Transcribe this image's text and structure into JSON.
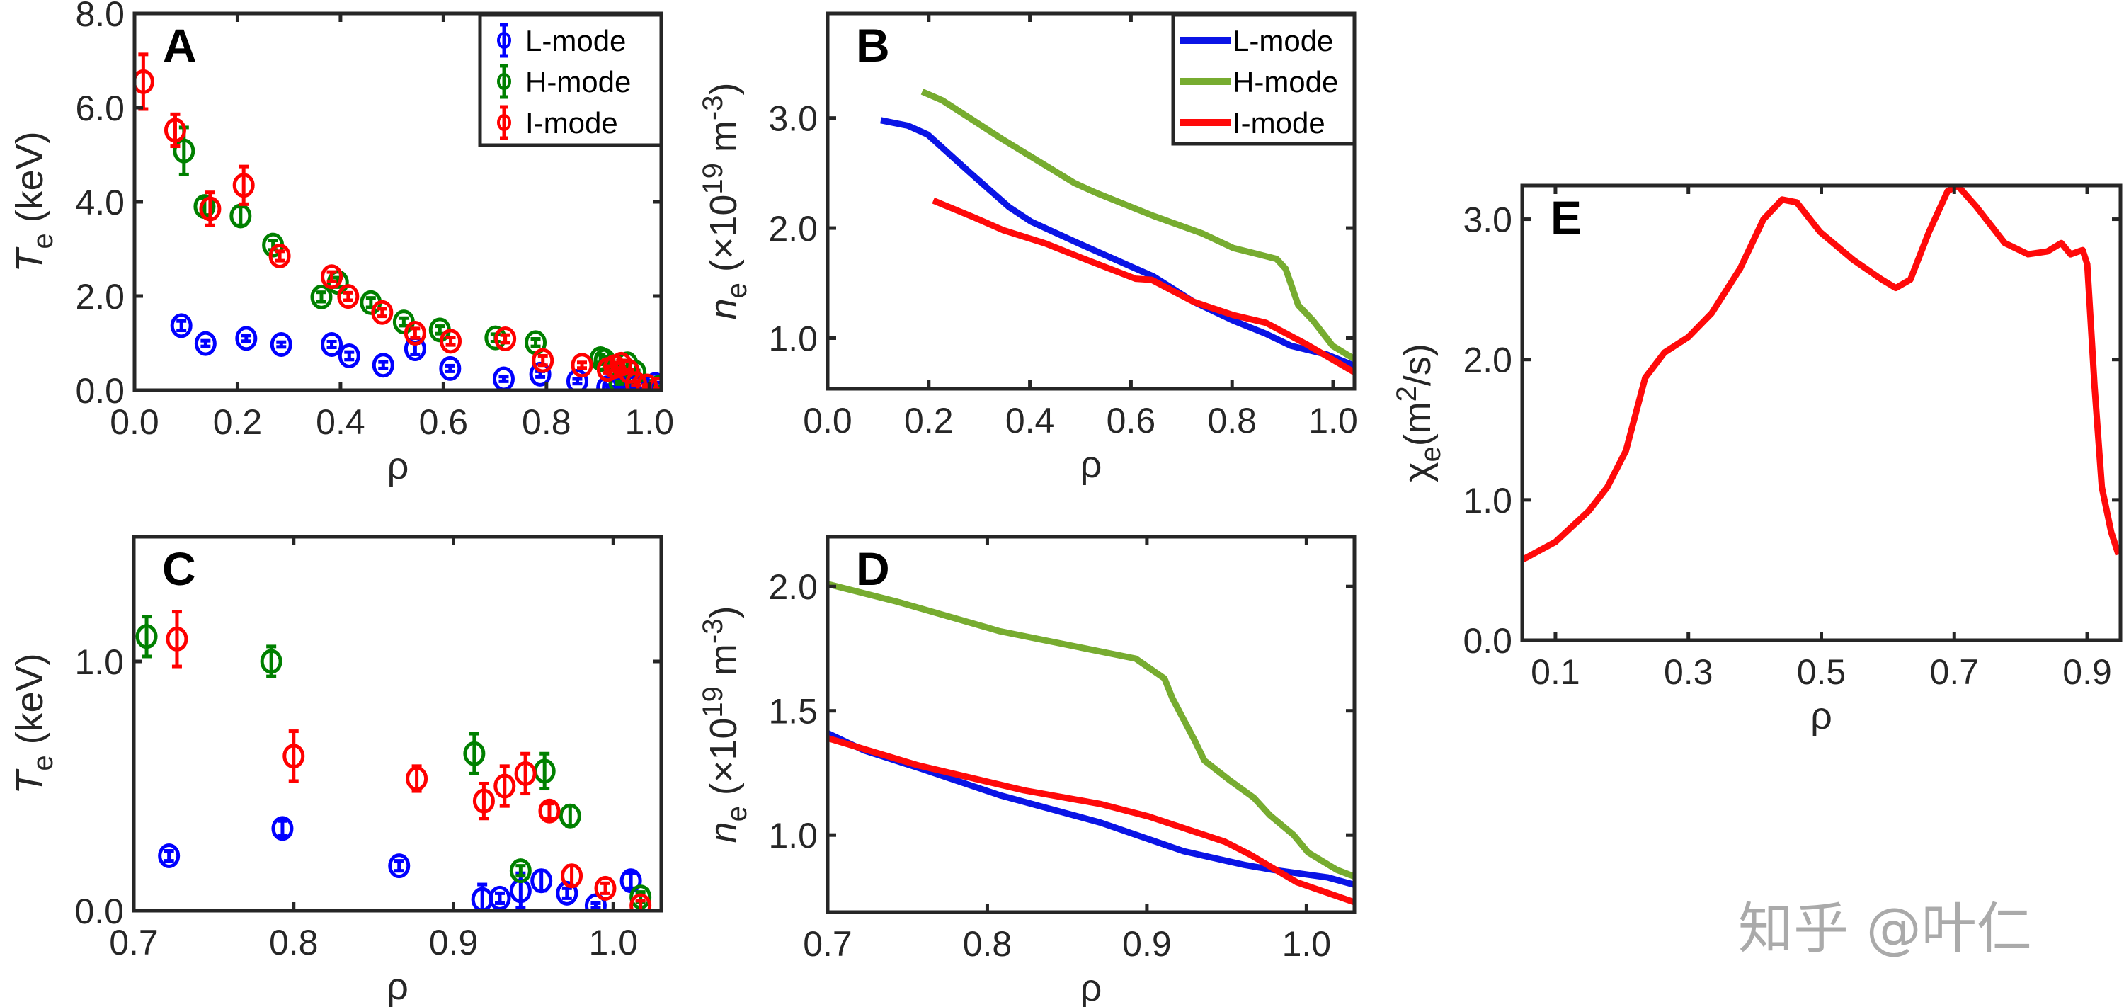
{
  "watermark": "知乎 @叶仁",
  "colors": {
    "axis": "#262626",
    "scatter": {
      "L-mode": "#0000ff",
      "H-mode": "#008000",
      "I-mode": "#ff0000"
    },
    "line": {
      "L-mode": "#0a14e6",
      "H-mode": "#77ac30",
      "I-mode": "#ff0a0a"
    }
  },
  "chart_data": [
    {
      "id": "A",
      "panel_letter": "A",
      "type": "scatter",
      "xlabel": "ρ",
      "ylabel": "T_e (keV)",
      "xlim": [
        0,
        1.023
      ],
      "ylim": [
        0,
        8
      ],
      "xticks": [
        0,
        0.2,
        0.4,
        0.6,
        0.8,
        1.0
      ],
      "xtick_labels": [
        "0.0",
        "0.2",
        "0.4",
        "0.6",
        "0.8",
        "1.0"
      ],
      "yticks": [
        0,
        2,
        4,
        6,
        8
      ],
      "ytick_labels": [
        "0.0",
        "2.0",
        "4.0",
        "6.0",
        "8.0"
      ],
      "legend": {
        "placement": "top-right",
        "entries": [
          "L-mode",
          "H-mode",
          "I-mode"
        ]
      },
      "series": [
        {
          "name": "L-mode",
          "points": [
            [
              0.091,
              1.37,
              0.1
            ],
            [
              0.138,
              0.99,
              0.06
            ],
            [
              0.217,
              1.1,
              0.06
            ],
            [
              0.285,
              0.97,
              0.05
            ],
            [
              0.383,
              0.97,
              0.06
            ],
            [
              0.417,
              0.73,
              0.08
            ],
            [
              0.483,
              0.53,
              0.07
            ],
            [
              0.545,
              0.88,
              0.12
            ],
            [
              0.613,
              0.46,
              0.06
            ],
            [
              0.717,
              0.24,
              0.05
            ],
            [
              0.788,
              0.34,
              0.06
            ],
            [
              0.86,
              0.19,
              0.05
            ],
            [
              0.918,
              0.05,
              0.06
            ],
            [
              0.929,
              0.05,
              0.03
            ],
            [
              0.942,
              0.08,
              0.07
            ],
            [
              0.955,
              0.12,
              0.05
            ],
            [
              0.971,
              0.07,
              0.03
            ],
            [
              0.989,
              0.02,
              0.02
            ],
            [
              1.011,
              0.12,
              0.04
            ]
          ]
        },
        {
          "name": "H-mode",
          "points": [
            [
              0.096,
              5.08,
              0.5
            ],
            [
              0.136,
              3.9,
              0.18
            ],
            [
              0.206,
              3.7,
              0.2
            ],
            [
              0.269,
              3.08,
              0.1
            ],
            [
              0.363,
              1.98,
              0.1
            ],
            [
              0.395,
              2.29,
              0.1
            ],
            [
              0.459,
              1.86,
              0.1
            ],
            [
              0.523,
              1.45,
              0.08
            ],
            [
              0.593,
              1.28,
              0.08
            ],
            [
              0.701,
              1.11,
              0.08
            ],
            [
              0.779,
              1.01,
              0.08
            ],
            [
              0.905,
              0.67,
              0.08
            ],
            [
              0.913,
              0.63,
              0.08
            ],
            [
              0.942,
              0.16,
              0.03
            ],
            [
              0.957,
              0.56,
              0.07
            ],
            [
              0.973,
              0.38,
              0.04
            ],
            [
              1.017,
              0.055,
              0.02
            ]
          ]
        },
        {
          "name": "I-mode",
          "points": [
            [
              0.017,
              6.55,
              0.58
            ],
            [
              0.079,
              5.52,
              0.34
            ],
            [
              0.147,
              3.85,
              0.35
            ],
            [
              0.212,
              4.35,
              0.4
            ],
            [
              0.282,
              2.85,
              0.1
            ],
            [
              0.383,
              2.41,
              0.1
            ],
            [
              0.415,
              1.99,
              0.08
            ],
            [
              0.481,
              1.65,
              0.08
            ],
            [
              0.545,
              1.21,
              0.1
            ],
            [
              0.614,
              1.04,
              0.08
            ],
            [
              0.72,
              1.09,
              0.08
            ],
            [
              0.793,
              0.63,
              0.1
            ],
            [
              0.869,
              0.53,
              0.06
            ],
            [
              0.919,
              0.44,
              0.07
            ],
            [
              0.932,
              0.5,
              0.08
            ],
            [
              0.945,
              0.55,
              0.08
            ],
            [
              0.96,
              0.4,
              0.03
            ],
            [
              0.974,
              0.14,
              0.04
            ],
            [
              0.995,
              0.09,
              0.02
            ],
            [
              1.017,
              0.02,
              0.02
            ]
          ]
        }
      ]
    },
    {
      "id": "B",
      "panel_letter": "B",
      "type": "line",
      "xlabel": "ρ",
      "ylabel": "n_e (×10^19 m^-3)",
      "xlim": [
        0,
        1.042
      ],
      "ylim": [
        0.54,
        3.95
      ],
      "xticks": [
        0,
        0.2,
        0.4,
        0.6,
        0.8,
        1.0
      ],
      "xtick_labels": [
        "0.0",
        "0.2",
        "0.4",
        "0.6",
        "0.8",
        "1.0"
      ],
      "yticks": [
        1,
        2,
        3
      ],
      "ytick_labels": [
        "1.0",
        "2.0",
        "3.0"
      ],
      "legend": {
        "placement": "top-right",
        "entries": [
          "L-mode",
          "H-mode",
          "I-mode"
        ]
      },
      "series": [
        {
          "name": "L-mode",
          "x": [
            0.105,
            0.159,
            0.198,
            0.28,
            0.359,
            0.402,
            0.502,
            0.645,
            0.724,
            0.802,
            0.867,
            0.917,
            0.988,
            1.042
          ],
          "y": [
            2.98,
            2.93,
            2.85,
            2.51,
            2.19,
            2.06,
            1.85,
            1.56,
            1.33,
            1.16,
            1.04,
            0.93,
            0.85,
            0.75
          ]
        },
        {
          "name": "H-mode",
          "x": [
            0.187,
            0.227,
            0.345,
            0.488,
            0.531,
            0.645,
            0.742,
            0.802,
            0.888,
            0.906,
            0.931,
            0.96,
            0.999,
            1.042
          ],
          "y": [
            3.24,
            3.16,
            2.81,
            2.41,
            2.32,
            2.11,
            1.95,
            1.82,
            1.72,
            1.63,
            1.3,
            1.16,
            0.93,
            0.81
          ]
        },
        {
          "name": "I-mode",
          "x": [
            0.209,
            0.288,
            0.348,
            0.431,
            0.502,
            0.609,
            0.641,
            0.724,
            0.802,
            0.867,
            0.945,
            1.042
          ],
          "y": [
            2.25,
            2.1,
            1.98,
            1.86,
            1.73,
            1.54,
            1.53,
            1.33,
            1.21,
            1.14,
            0.95,
            0.69
          ]
        }
      ]
    },
    {
      "id": "C",
      "panel_letter": "C",
      "type": "scatter",
      "xlabel": "ρ",
      "ylabel": "T_e (keV)",
      "xlim": [
        0.7,
        1.03
      ],
      "ylim": [
        0,
        1.5
      ],
      "xticks": [
        0.7,
        0.8,
        0.9,
        1.0
      ],
      "xtick_labels": [
        "0.7",
        "0.8",
        "0.9",
        "1.0"
      ],
      "yticks": [
        0,
        1.0
      ],
      "ytick_labels": [
        "0.0",
        "1.0"
      ],
      "series": [
        {
          "name": "L-mode",
          "points": [
            [
              0.722,
              0.22,
              0.02
            ],
            [
              0.793,
              0.33,
              0.03
            ],
            [
              0.866,
              0.18,
              0.02
            ],
            [
              0.918,
              0.045,
              0.06
            ],
            [
              0.929,
              0.05,
              0.02
            ],
            [
              0.942,
              0.08,
              0.07
            ],
            [
              0.955,
              0.12,
              0.04
            ],
            [
              0.971,
              0.07,
              0.02
            ],
            [
              0.989,
              0.02,
              0.01
            ],
            [
              1.011,
              0.12,
              0.03
            ]
          ]
        },
        {
          "name": "H-mode",
          "points": [
            [
              0.708,
              1.1,
              0.08
            ],
            [
              0.786,
              1.0,
              0.06
            ],
            [
              0.913,
              0.63,
              0.08
            ],
            [
              0.942,
              0.16,
              0.02
            ],
            [
              0.957,
              0.56,
              0.07
            ],
            [
              0.973,
              0.38,
              0.04
            ],
            [
              1.017,
              0.055,
              0.02
            ]
          ]
        },
        {
          "name": "I-mode",
          "points": [
            [
              0.727,
              1.09,
              0.11
            ],
            [
              0.8,
              0.62,
              0.1
            ],
            [
              0.877,
              0.53,
              0.05
            ],
            [
              0.919,
              0.44,
              0.07
            ],
            [
              0.932,
              0.5,
              0.08
            ],
            [
              0.945,
              0.55,
              0.08
            ],
            [
              0.96,
              0.4,
              0.03
            ],
            [
              0.974,
              0.14,
              0.04
            ],
            [
              0.995,
              0.09,
              0.02
            ],
            [
              1.017,
              0.02,
              0.02
            ]
          ]
        }
      ]
    },
    {
      "id": "D",
      "panel_letter": "D",
      "type": "line",
      "xlabel": "ρ",
      "ylabel": "n_e (×10^19 m^-3)",
      "xlim": [
        0.7,
        1.03
      ],
      "ylim": [
        0.69,
        2.2
      ],
      "xticks": [
        0.7,
        0.8,
        0.9,
        1.0
      ],
      "xtick_labels": [
        "0.7",
        "0.8",
        "0.9",
        "1.0"
      ],
      "yticks": [
        1.0,
        1.5,
        2.0
      ],
      "ytick_labels": [
        "1.0",
        "1.5",
        "2.0"
      ],
      "series": [
        {
          "name": "L-mode",
          "x": [
            0.7,
            0.723,
            0.757,
            0.808,
            0.871,
            0.923,
            0.961,
            0.979,
            1.013,
            1.03
          ],
          "y": [
            1.41,
            1.34,
            1.27,
            1.16,
            1.05,
            0.935,
            0.88,
            0.86,
            0.83,
            0.8
          ]
        },
        {
          "name": "H-mode",
          "x": [
            0.7,
            0.743,
            0.808,
            0.893,
            0.911,
            0.916,
            0.93,
            0.936,
            0.952,
            0.967,
            0.977,
            0.992,
            1.001,
            1.019,
            1.03
          ],
          "y": [
            2.01,
            1.94,
            1.82,
            1.71,
            1.63,
            1.55,
            1.38,
            1.3,
            1.22,
            1.15,
            1.08,
            1.0,
            0.93,
            0.86,
            0.833
          ]
        },
        {
          "name": "I-mode",
          "x": [
            0.7,
            0.757,
            0.823,
            0.871,
            0.901,
            0.949,
            0.965,
            0.994,
            1.03
          ],
          "y": [
            1.39,
            1.28,
            1.18,
            1.125,
            1.075,
            0.973,
            0.92,
            0.81,
            0.73
          ]
        }
      ]
    },
    {
      "id": "E",
      "panel_letter": "E",
      "type": "line",
      "xlabel": "ρ",
      "ylabel": "χ_e(m^2/s)",
      "xlim": [
        0.05,
        0.95
      ],
      "ylim": [
        0,
        3.24
      ],
      "xticks": [
        0.1,
        0.3,
        0.5,
        0.7,
        0.9
      ],
      "xtick_labels": [
        "0.1",
        "0.3",
        "0.5",
        "0.7",
        "0.9"
      ],
      "yticks": [
        0,
        1,
        2,
        3
      ],
      "ytick_labels": [
        "0.0",
        "1.0",
        "2.0",
        "3.0"
      ],
      "series": [
        {
          "name": "chi_e",
          "x": [
            0.049,
            0.1,
            0.15,
            0.178,
            0.206,
            0.235,
            0.264,
            0.3,
            0.335,
            0.378,
            0.413,
            0.441,
            0.463,
            0.498,
            0.548,
            0.591,
            0.612,
            0.634,
            0.662,
            0.69,
            0.705,
            0.733,
            0.776,
            0.811,
            0.84,
            0.861,
            0.875,
            0.893,
            0.9,
            0.911,
            0.922,
            0.936,
            0.947
          ],
          "y": [
            0.57,
            0.7,
            0.92,
            1.09,
            1.35,
            1.87,
            2.05,
            2.16,
            2.33,
            2.65,
            3.0,
            3.14,
            3.12,
            2.91,
            2.71,
            2.57,
            2.51,
            2.57,
            2.91,
            3.2,
            3.24,
            3.09,
            2.83,
            2.75,
            2.77,
            2.83,
            2.75,
            2.78,
            2.68,
            1.81,
            1.09,
            0.77,
            0.61
          ]
        }
      ]
    }
  ]
}
